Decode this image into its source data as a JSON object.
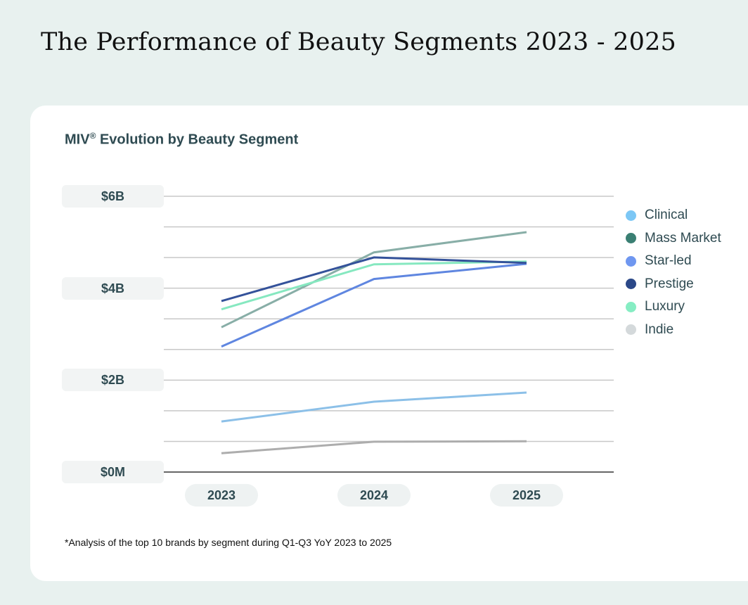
{
  "page_title": "The Performance of Beauty Segments 2023 - 2025",
  "footnote": "*Analysis of the top 10 brands by segment during Q1-Q3 YoY 2023 to 2025",
  "chart_data": {
    "type": "line",
    "title": "MIV",
    "title_mark": "®",
    "title_rest": " Evolution by Beauty Segment",
    "xlabel": "",
    "ylabel": "",
    "categories": [
      "2023",
      "2024",
      "2025"
    ],
    "ylim": [
      0,
      6
    ],
    "y_unit": "billions USD",
    "y_gridlines_step": 0.6667,
    "y_tick_labels": [
      {
        "value": 6,
        "label": "$6B"
      },
      {
        "value": 4,
        "label": "$4B"
      },
      {
        "value": 2,
        "label": "$2B"
      },
      {
        "value": 0,
        "label": "$0M"
      }
    ],
    "legend_position": "right",
    "series": [
      {
        "name": "Clinical",
        "color": "#7cc7f5",
        "line_color": "#8cc0e8",
        "values": [
          1.1,
          1.53,
          1.73
        ]
      },
      {
        "name": "Mass Market",
        "color": "#3a7f73",
        "line_color": "#88aea7",
        "values": [
          3.15,
          4.78,
          5.22
        ]
      },
      {
        "name": "Star-led",
        "color": "#6f97f0",
        "line_color": "#5f86e0",
        "values": [
          2.73,
          4.2,
          4.53
        ]
      },
      {
        "name": "Prestige",
        "color": "#2b4888",
        "line_color": "#34529a",
        "values": [
          3.72,
          4.67,
          4.55
        ]
      },
      {
        "name": "Luxury",
        "color": "#86edc3",
        "line_color": "#86e8c0",
        "values": [
          3.54,
          4.52,
          4.58
        ]
      },
      {
        "name": "Indie",
        "color": "#d4d9db",
        "line_color": "#adadad",
        "values": [
          0.41,
          0.66,
          0.67
        ]
      }
    ]
  }
}
